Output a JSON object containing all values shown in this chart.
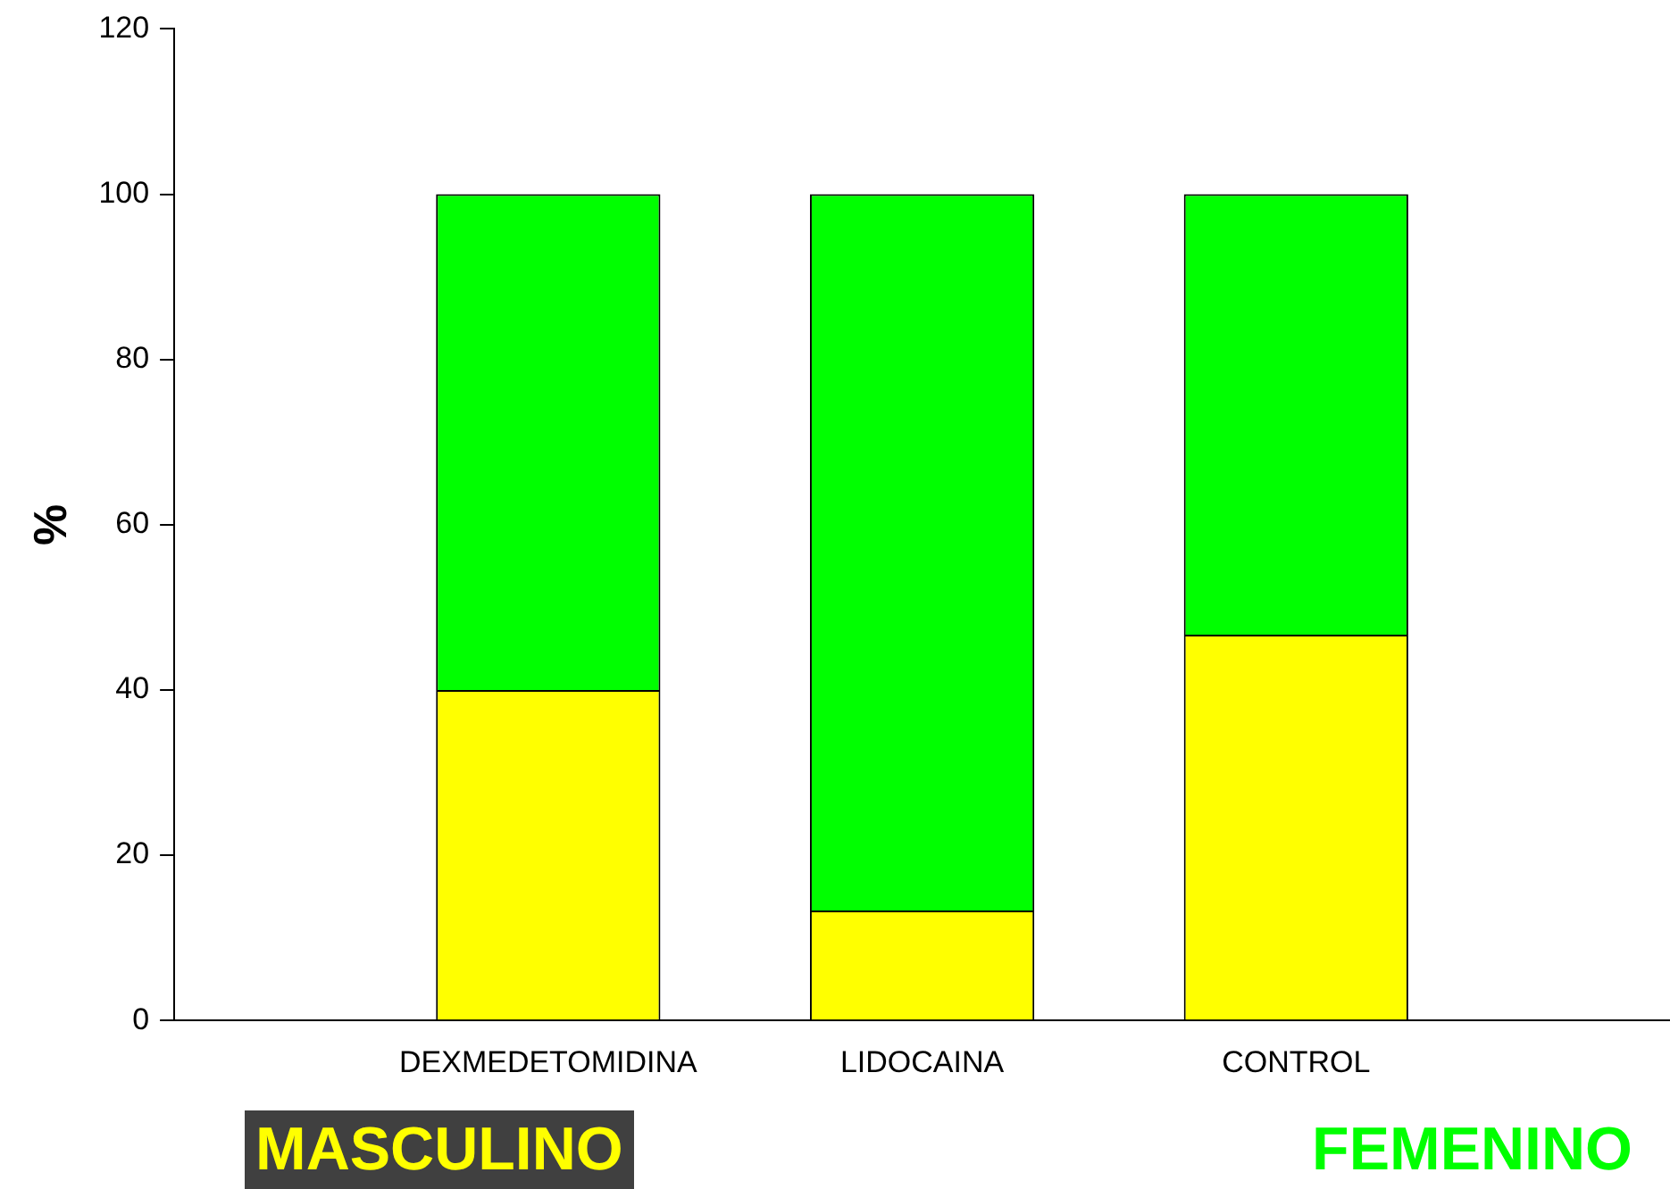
{
  "chart_data": {
    "type": "bar",
    "ylabel": "%",
    "categories": [
      "DEXMEDETOMIDINA",
      "LIDOCAINA",
      "CONTROL"
    ],
    "series": [
      {
        "name": "MASCULINO",
        "color": "#ffff00",
        "values": [
          40,
          13.3,
          46.7
        ]
      },
      {
        "name": "FEMENINO",
        "color": "#00ff00",
        "values": [
          60,
          86.7,
          53.3
        ]
      }
    ],
    "stacked": true,
    "ylim": [
      0,
      120
    ],
    "yticks": [
      0,
      20,
      40,
      60,
      80,
      100,
      120
    ],
    "grid": false,
    "legend": "bottom"
  }
}
